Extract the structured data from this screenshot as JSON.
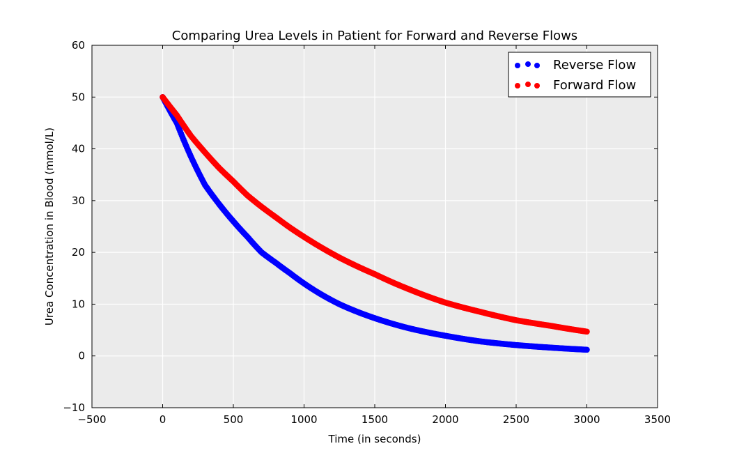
{
  "chart_data": {
    "type": "scatter",
    "title": "Comparing Urea Levels in Patient for Forward and Reverse Flows",
    "xlabel": "Time (in seconds)",
    "ylabel": "Urea Concentration in Blood (mmol/L)",
    "xlim": [
      -500,
      3500
    ],
    "ylim": [
      -10,
      60
    ],
    "xticks": [
      -500,
      0,
      500,
      1000,
      1500,
      2000,
      2500,
      3000,
      3500
    ],
    "xtick_labels": [
      "−500",
      "0",
      "500",
      "1000",
      "1500",
      "2000",
      "2500",
      "3000",
      "3500"
    ],
    "yticks": [
      -10,
      0,
      10,
      20,
      30,
      40,
      50,
      60
    ],
    "ytick_labels": [
      "−10",
      "0",
      "10",
      "20",
      "30",
      "40",
      "50",
      "60"
    ],
    "grid": true,
    "background": "#ebebeb",
    "legend_position": "top-right",
    "series": [
      {
        "name": "Reverse Flow",
        "color": "#0000ff",
        "x": [
          0,
          100,
          200,
          300,
          400,
          500,
          600,
          700,
          800,
          900,
          1000,
          1250,
          1500,
          1750,
          2000,
          2250,
          2500,
          2750,
          3000
        ],
        "y": [
          50,
          45.0,
          38.5,
          33.0,
          29.3,
          26.0,
          23.0,
          20.0,
          18.0,
          16.0,
          14.0,
          10.0,
          7.3,
          5.3,
          3.9,
          2.8,
          2.1,
          1.6,
          1.2
        ]
      },
      {
        "name": "Forward Flow",
        "color": "#ff0000",
        "x": [
          0,
          100,
          200,
          300,
          400,
          500,
          600,
          700,
          800,
          900,
          1000,
          1250,
          1500,
          1750,
          2000,
          2250,
          2500,
          2750,
          3000
        ],
        "y": [
          50,
          46.5,
          42.5,
          39.3,
          36.3,
          33.7,
          31.0,
          28.8,
          26.8,
          24.8,
          23.0,
          19.0,
          15.8,
          12.8,
          10.3,
          8.5,
          6.9,
          5.8,
          4.7
        ]
      }
    ]
  }
}
